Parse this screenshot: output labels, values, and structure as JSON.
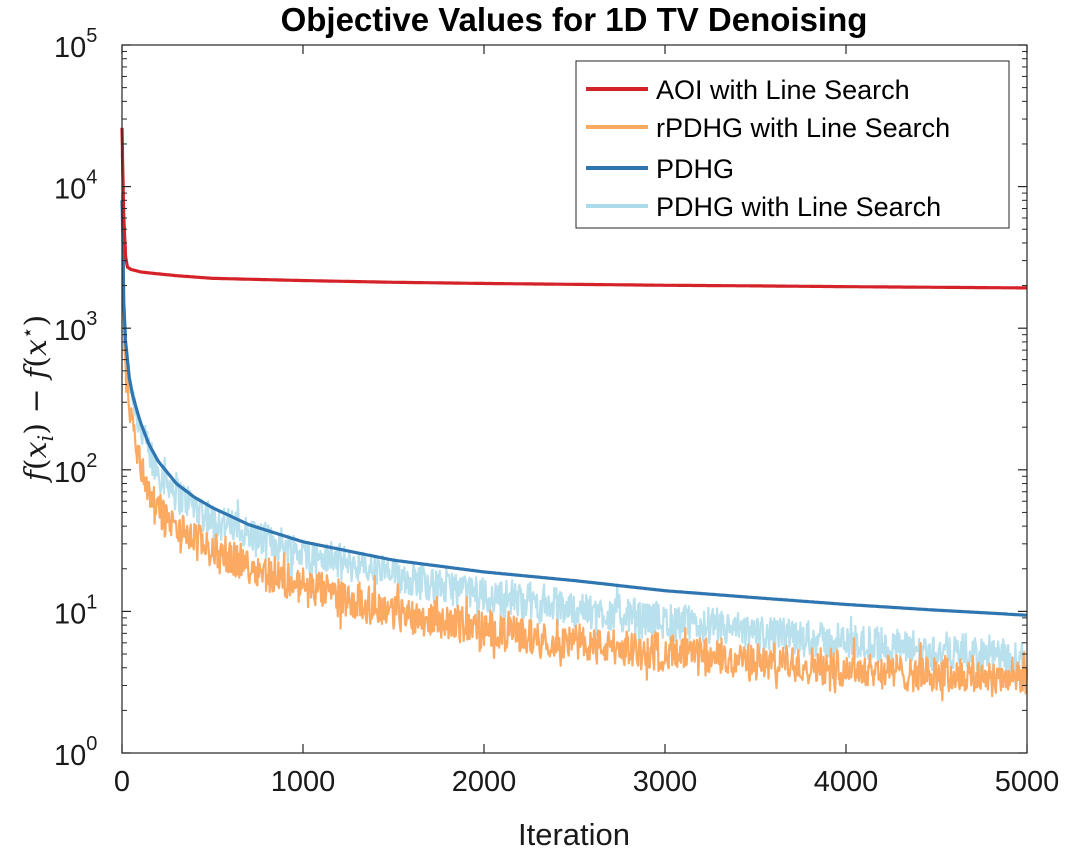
{
  "chart_data": {
    "type": "line",
    "title": "Objective Values for 1D TV Denoising",
    "xlabel": "Iteration",
    "ylabel": "f(x_i) − f(x*)",
    "ylabel_parts": {
      "f1": "f",
      "open1": "(",
      "x1": "x",
      "sub": "i",
      "close1": ")",
      "minus": " − ",
      "f2": "f",
      "open2": "(",
      "x2": "x",
      "star": "⋆",
      "close2": ")"
    },
    "xscale": "linear",
    "yscale": "log",
    "xlim": [
      0,
      5000
    ],
    "ylim": [
      1,
      100000
    ],
    "xticks": [
      0,
      1000,
      2000,
      3000,
      4000,
      5000
    ],
    "xtick_labels": [
      "0",
      "1000",
      "2000",
      "3000",
      "4000",
      "5000"
    ],
    "yticks": [
      1,
      10,
      100,
      1000,
      10000,
      100000
    ],
    "ytick_labels": [
      {
        "base": "10",
        "exp": "0"
      },
      {
        "base": "10",
        "exp": "1"
      },
      {
        "base": "10",
        "exp": "2"
      },
      {
        "base": "10",
        "exp": "3"
      },
      {
        "base": "10",
        "exp": "4"
      },
      {
        "base": "10",
        "exp": "5"
      }
    ],
    "grid": false,
    "legend_position": "top-right",
    "series": [
      {
        "name": "PDHG with Line Search",
        "color": "#abdaea",
        "noisy": true,
        "x": [
          0,
          5,
          10,
          20,
          40,
          60,
          100,
          150,
          200,
          300,
          500,
          700,
          1000,
          1500,
          2000,
          2500,
          3000,
          3500,
          4000,
          4500,
          5000
        ],
        "y": [
          9000,
          5000,
          1000,
          700,
          450,
          330,
          200,
          130,
          100,
          70,
          45,
          35,
          26,
          18,
          13,
          10.5,
          8.5,
          7,
          6,
          5.2,
          4.6
        ]
      },
      {
        "name": "rPDHG with Line Search",
        "color": "#fca962",
        "noisy": true,
        "x": [
          0,
          5,
          10,
          20,
          40,
          60,
          100,
          150,
          200,
          300,
          500,
          700,
          1000,
          1500,
          2000,
          2500,
          3000,
          3500,
          4000,
          4500,
          5000
        ],
        "y": [
          17000,
          9000,
          800,
          500,
          300,
          200,
          110,
          70,
          52,
          38,
          27,
          21,
          15,
          10,
          7.5,
          6,
          5,
          4.4,
          4,
          3.6,
          3.4
        ]
      },
      {
        "name": "PDHG",
        "color": "#2f76b1",
        "noisy": false,
        "x": [
          0,
          5,
          10,
          20,
          40,
          60,
          100,
          150,
          200,
          300,
          400,
          500,
          700,
          1000,
          1500,
          2000,
          2500,
          3000,
          3500,
          4000,
          4500,
          5000
        ],
        "y": [
          8000,
          4500,
          1500,
          800,
          450,
          330,
          220,
          150,
          115,
          80,
          64,
          54,
          41,
          31,
          23,
          19,
          16.5,
          14,
          12.5,
          11.2,
          10.2,
          9.4
        ]
      },
      {
        "name": "AOI with Line Search",
        "color": "#d42228",
        "noisy": false,
        "x": [
          0,
          5,
          10,
          20,
          30,
          50,
          100,
          200,
          300,
          500,
          1000,
          1500,
          2000,
          2500,
          3000,
          3500,
          4000,
          4500,
          5000
        ],
        "y": [
          26000,
          12000,
          6000,
          3200,
          2700,
          2600,
          2500,
          2420,
          2350,
          2250,
          2170,
          2110,
          2070,
          2040,
          2010,
          1990,
          1965,
          1945,
          1925
        ]
      }
    ],
    "legend_order": [
      "AOI with Line Search",
      "rPDHG with Line Search",
      "PDHG",
      "PDHG with Line Search"
    ]
  }
}
